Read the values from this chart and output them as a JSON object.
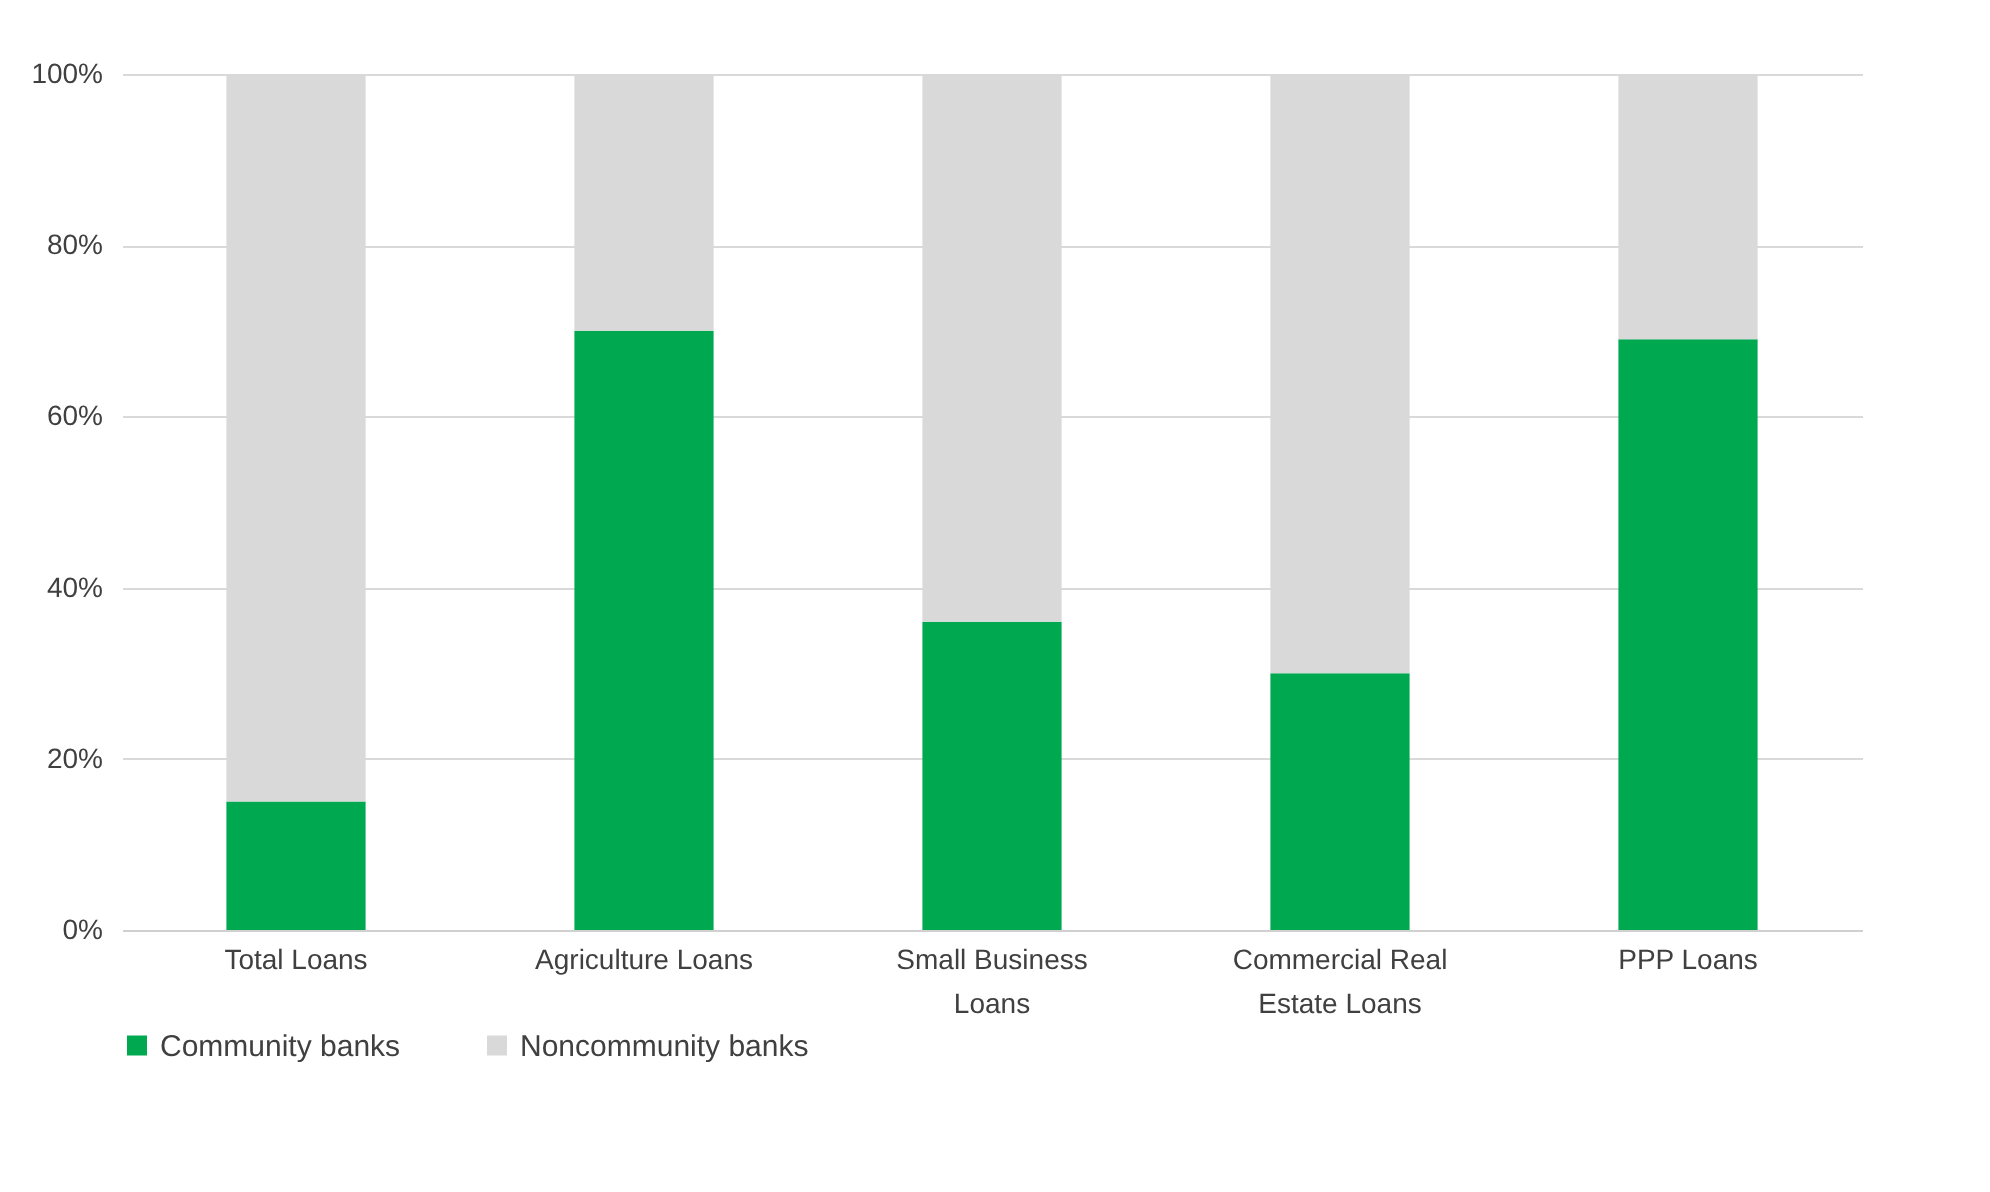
{
  "chart_data": {
    "type": "bar",
    "stacked": true,
    "categories": [
      "Total Loans",
      "Agriculture Loans",
      "Small Business Loans",
      "Commercial Real Estate Loans",
      "PPP Loans"
    ],
    "series": [
      {
        "name": "Community banks",
        "color": "#00a94f",
        "values": [
          15,
          70,
          36,
          30,
          69
        ]
      },
      {
        "name": "Noncommunity banks",
        "color": "#d9d9d9",
        "values": [
          85,
          30,
          64,
          70,
          31
        ]
      }
    ],
    "ylim": [
      0,
      100
    ],
    "yticks": [
      {
        "value": 0,
        "label": "0%"
      },
      {
        "value": 20,
        "label": "20%"
      },
      {
        "value": 40,
        "label": "40%"
      },
      {
        "value": 60,
        "label": "60%"
      },
      {
        "value": 80,
        "label": "80%"
      },
      {
        "value": 100,
        "label": "100%"
      }
    ],
    "grid": "y",
    "legend": "bottom"
  }
}
